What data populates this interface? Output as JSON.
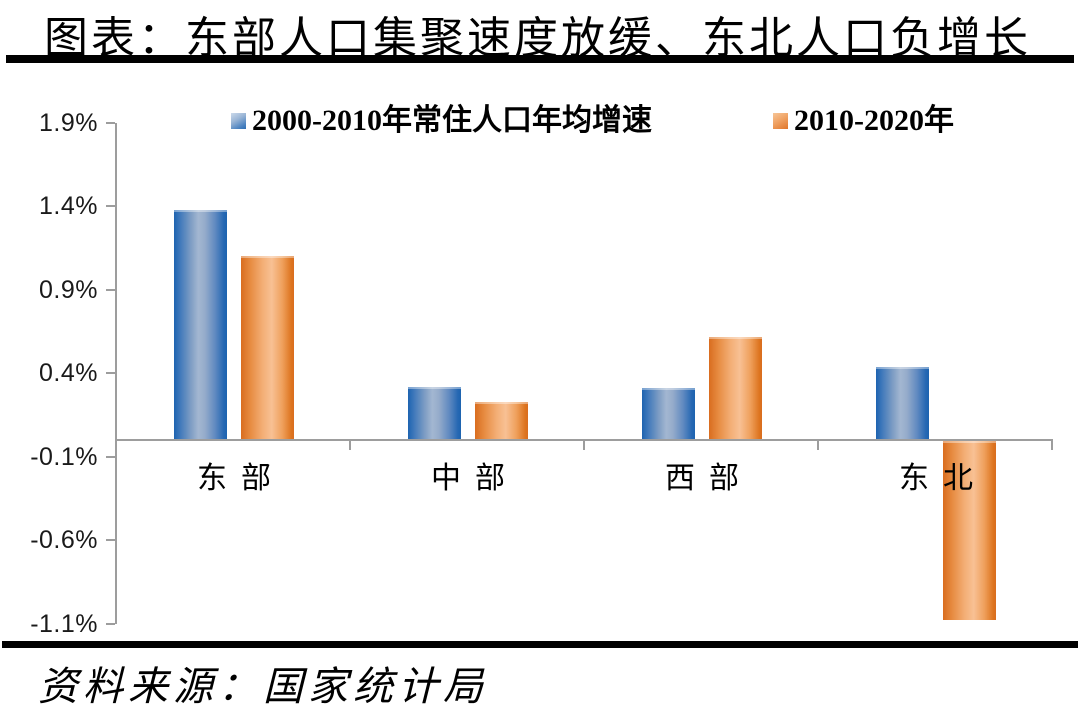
{
  "header": {
    "title": "图表：东部人口集聚速度放缓、东北人口负增长"
  },
  "footer": {
    "source_note": "资料来源：国家统计局"
  },
  "colors": {
    "series1_blue": "#2E74B8",
    "series2_orange": "#E0762A",
    "axis_gray": "#9D9D9D",
    "rule_black": "#000000",
    "text_black": "#1A1A1A"
  },
  "legend": {
    "swatch_icons": [
      "blue-square-icon",
      "orange-square-icon"
    ]
  },
  "chart_data": {
    "type": "bar",
    "title": "图表：东部人口集聚速度放缓、东北人口负增长",
    "categories": [
      "东部",
      "中部",
      "西部",
      "东北"
    ],
    "series": [
      {
        "name": "2000-2010年常住人口年均增速",
        "color": "#2E74B8",
        "values": [
          1.38,
          0.32,
          0.31,
          0.44
        ]
      },
      {
        "name": "2010-2020年",
        "color": "#E0762A",
        "values": [
          1.1,
          0.23,
          0.62,
          -1.07
        ]
      }
    ],
    "unit": "%",
    "ylim": [
      -1.1,
      1.9
    ],
    "yticks": [
      1.9,
      1.4,
      0.9,
      0.4,
      -0.1,
      -0.6,
      -1.1
    ],
    "ytick_labels": [
      "1.9%",
      "1.4%",
      "0.9%",
      "0.4%",
      "-0.1%",
      "-0.6%",
      "-1.1%"
    ],
    "legend_position": "top",
    "grid": false,
    "source": "资料来源：国家统计局"
  }
}
